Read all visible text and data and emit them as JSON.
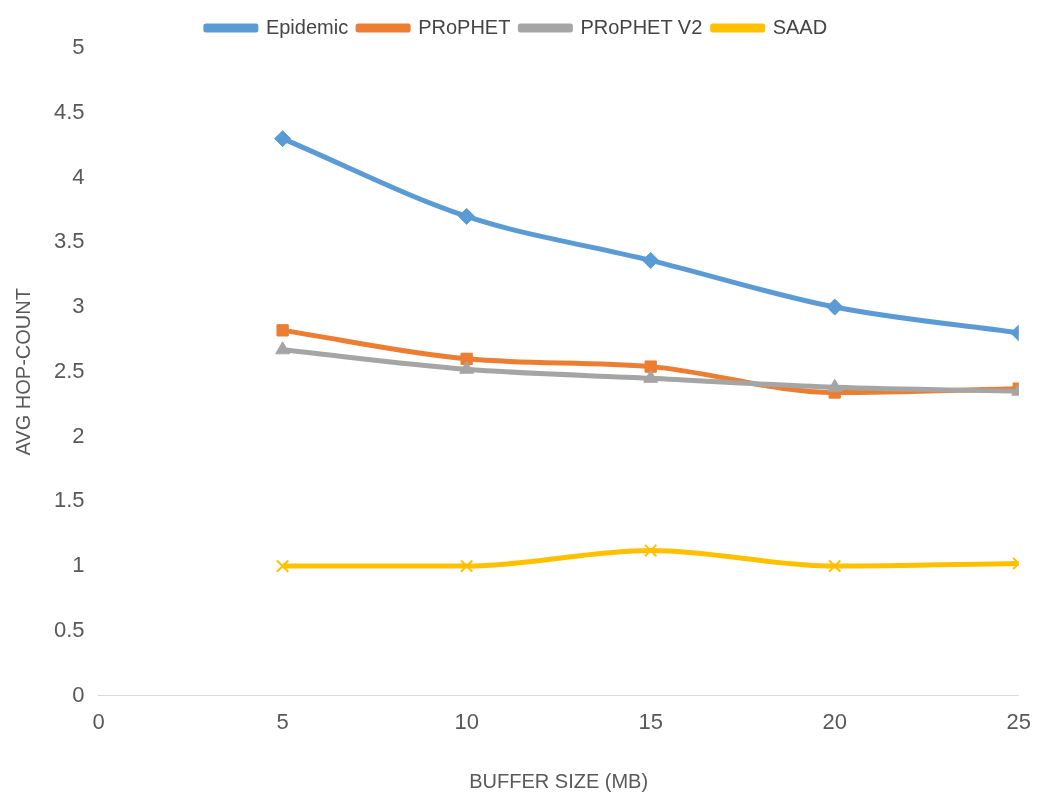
{
  "chart_data": {
    "type": "line",
    "xlabel": "BUFFER SIZE (MB)",
    "ylabel": "AVG HOP-COUNT",
    "x": [
      5,
      10,
      15,
      20,
      25
    ],
    "xlim": [
      0,
      25
    ],
    "xticks": [
      0,
      5,
      10,
      15,
      20,
      25
    ],
    "ylim": [
      0,
      5
    ],
    "yticks": [
      0,
      0.5,
      1,
      1.5,
      2,
      2.5,
      3,
      3.5,
      4,
      4.5,
      5
    ],
    "grid": false,
    "legend": "top",
    "series": [
      {
        "name": "Epidemic",
        "color": "#5b9bd5",
        "marker": "diamond",
        "values": [
          4.3,
          3.7,
          3.36,
          3.0,
          2.8
        ]
      },
      {
        "name": "PRoPHET",
        "color": "#ed7d31",
        "marker": "square",
        "values": [
          2.82,
          2.6,
          2.54,
          2.34,
          2.37
        ]
      },
      {
        "name": "PRoPHET V2",
        "color": "#a5a5a5",
        "marker": "triangle",
        "values": [
          2.67,
          2.52,
          2.45,
          2.38,
          2.35
        ]
      },
      {
        "name": "SAAD",
        "color": "#ffc000",
        "marker": "cross",
        "values": [
          1.0,
          1.0,
          1.12,
          1.0,
          1.02
        ]
      }
    ]
  }
}
